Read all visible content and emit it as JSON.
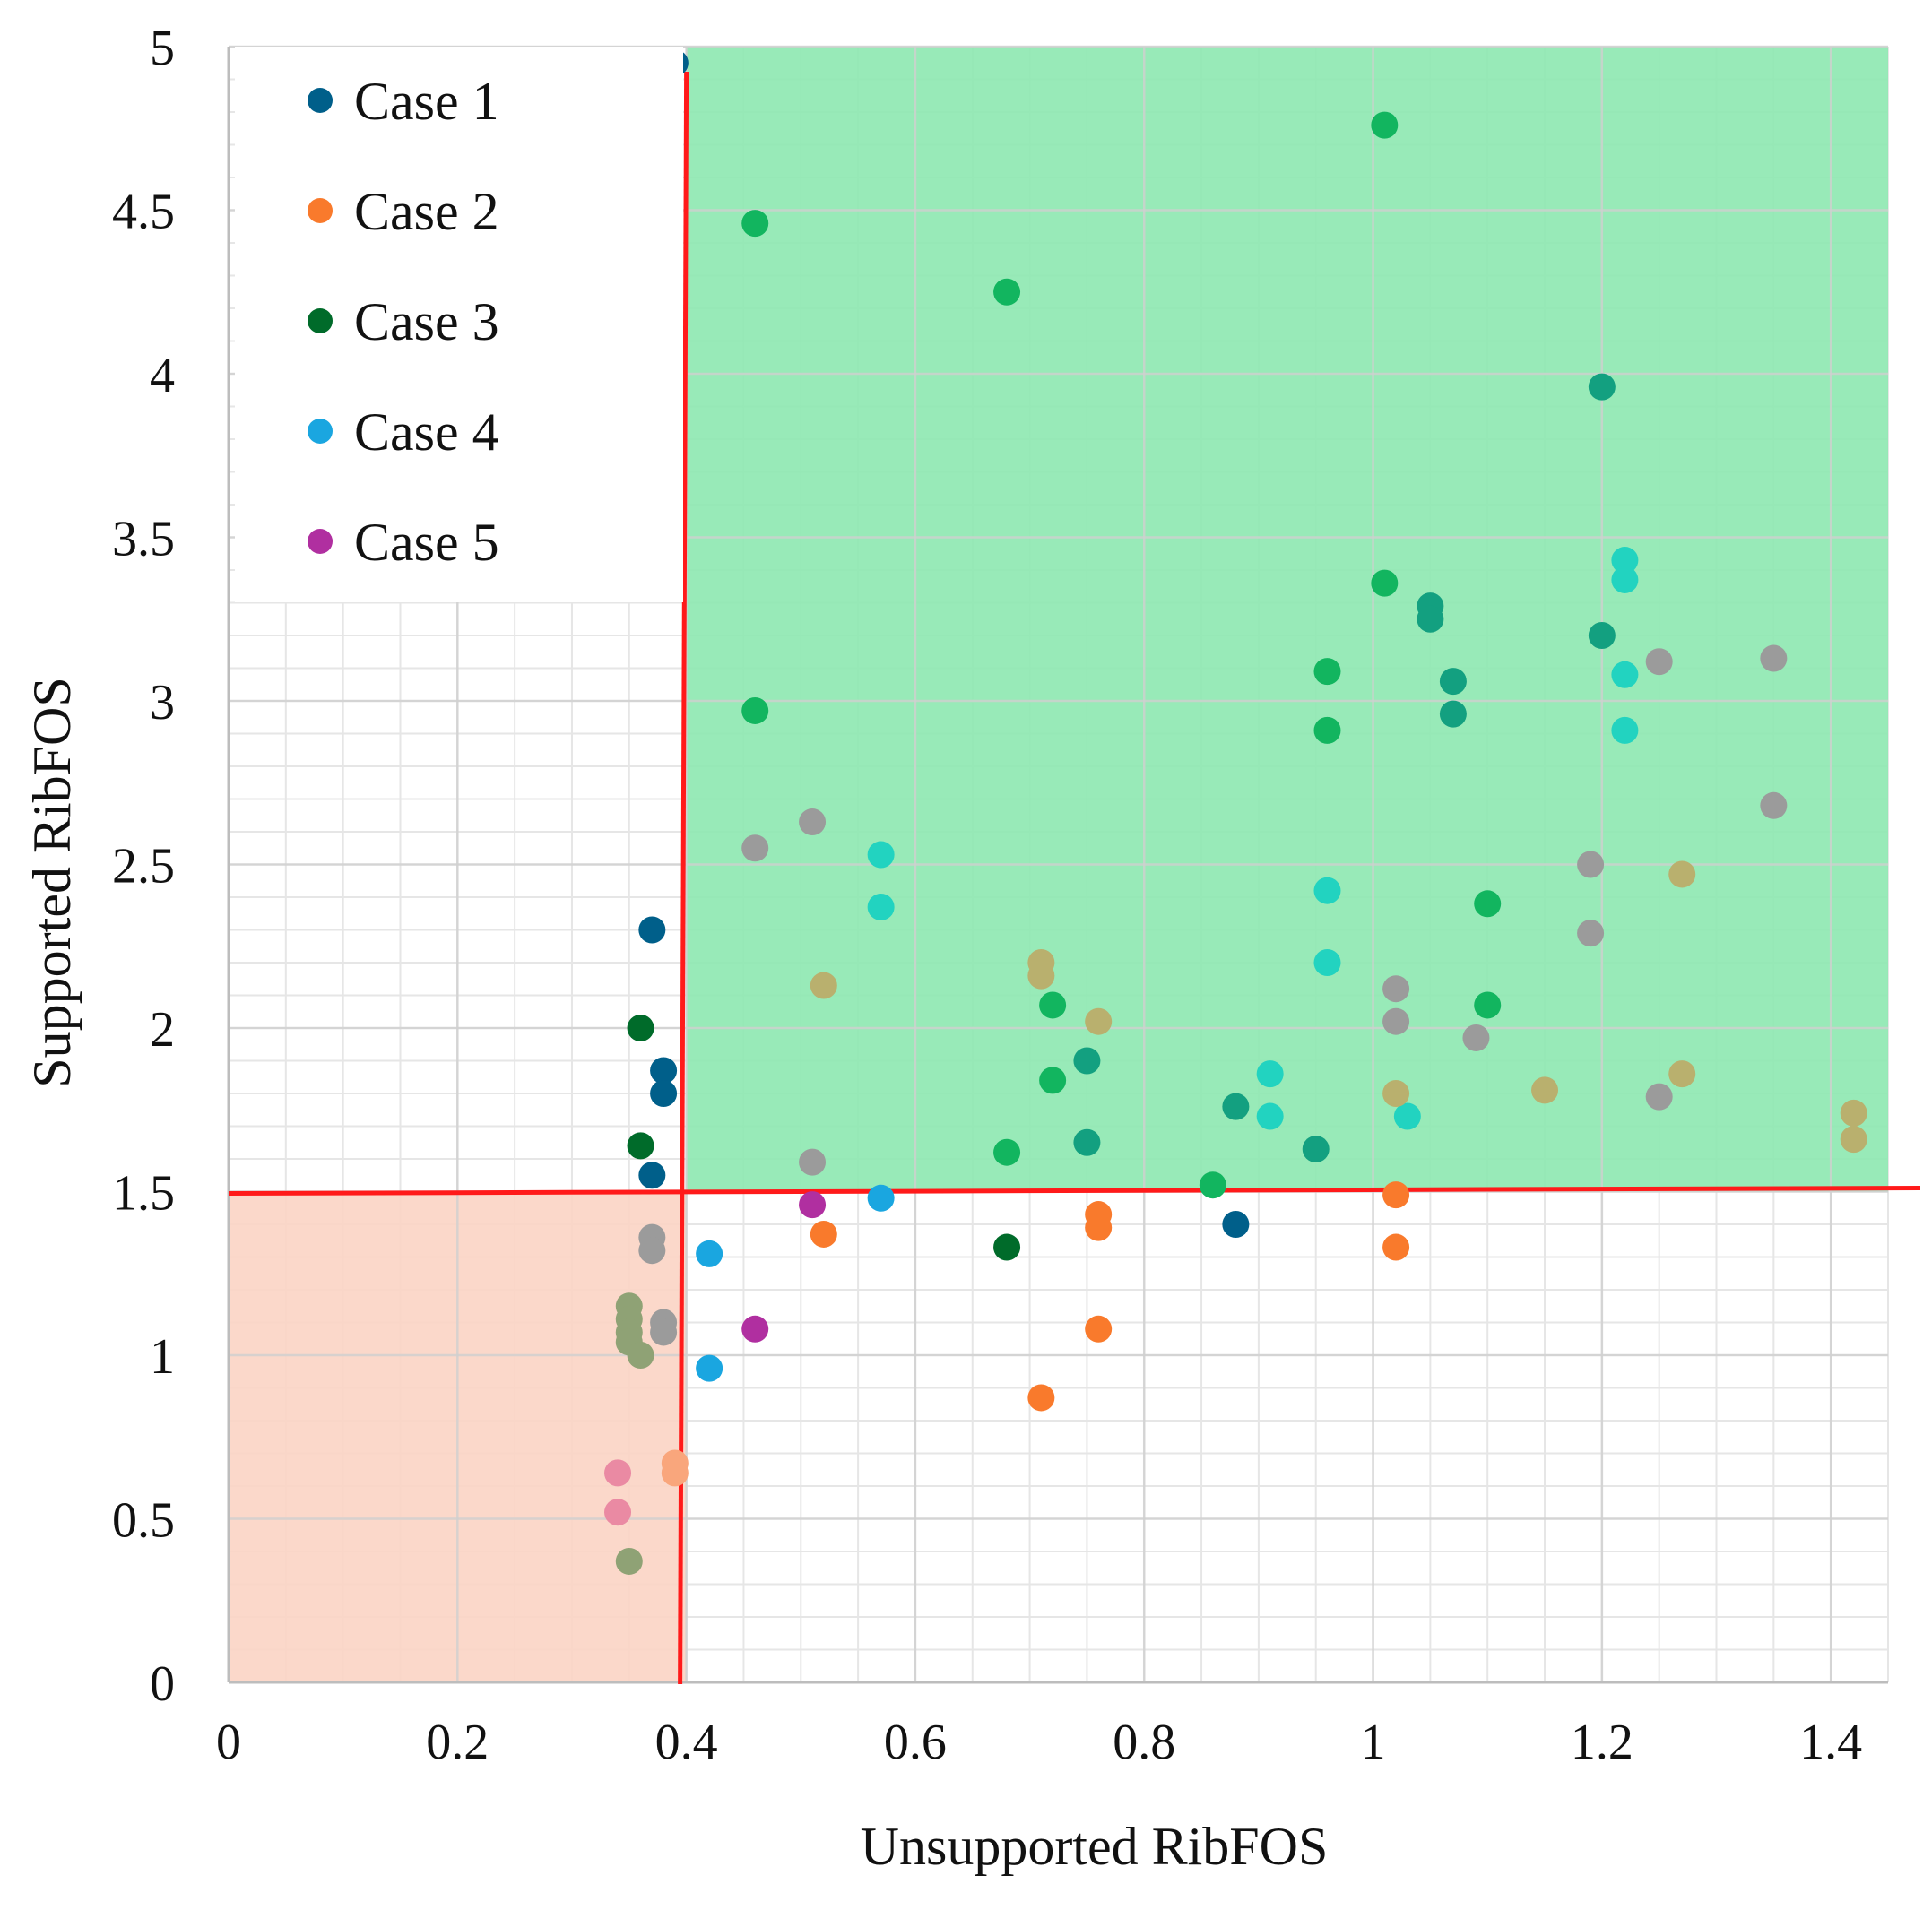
{
  "chart_data": {
    "type": "scatter",
    "title": "",
    "xlabel": "Unsupported RibFOS",
    "ylabel": "Supported RibFOS",
    "xlim": [
      0,
      1.45
    ],
    "ylim": [
      0,
      5
    ],
    "xticks": [
      0,
      0.2,
      0.4,
      0.6,
      0.8,
      1,
      1.2,
      1.4
    ],
    "xtick_labels": [
      "0",
      "0.2",
      "0.4",
      "0.6",
      "0.8",
      "1",
      "1.2",
      "1.4"
    ],
    "yticks": [
      0,
      0.5,
      1,
      1.5,
      2,
      2.5,
      3,
      3.5,
      4,
      4.5,
      5
    ],
    "ytick_labels": [
      "0",
      "0.5",
      "1",
      "1.5",
      "2",
      "2.5",
      "3",
      "3.5",
      "4",
      "4.5",
      "5"
    ],
    "grid": true,
    "legend_position": "top-left",
    "thresholds": {
      "x": 0.4,
      "y": 1.5,
      "color": "#ff1a1a"
    },
    "regions": [
      {
        "name": "safe",
        "x": [
          0.4,
          1.45
        ],
        "y": [
          1.5,
          5
        ],
        "color": "#8fe8b2"
      },
      {
        "name": "unsafe",
        "x": [
          0,
          0.4
        ],
        "y": [
          0,
          1.5
        ],
        "color": "#fbd5c6"
      }
    ],
    "legend": [
      {
        "label": "Case 1",
        "color": "#005f8a"
      },
      {
        "label": "Case 2",
        "color": "#f97a2c"
      },
      {
        "label": "Case 3",
        "color": "#006b2a"
      },
      {
        "label": "Case 4",
        "color": "#1aa6e0"
      },
      {
        "label": "Case 5",
        "color": "#b02fa0"
      }
    ],
    "series": [
      {
        "name": "Case 1",
        "color": "#005f8a",
        "points": [
          [
            0.39,
            4.95
          ],
          [
            0.37,
            2.3
          ],
          [
            0.38,
            1.87
          ],
          [
            0.38,
            1.8
          ],
          [
            0.37,
            1.55
          ],
          [
            0.88,
            1.4
          ]
        ]
      },
      {
        "name": "Case 2",
        "color": "#f97a2c",
        "points": [
          [
            0.52,
            1.37
          ],
          [
            0.76,
            1.43
          ],
          [
            0.76,
            1.39
          ],
          [
            0.76,
            1.08
          ],
          [
            0.71,
            0.87
          ],
          [
            1.02,
            1.49
          ],
          [
            1.02,
            1.33
          ]
        ]
      },
      {
        "name": "Case 3",
        "color": "#006b2a",
        "points": [
          [
            0.35,
            4.82
          ],
          [
            0.36,
            2.0
          ],
          [
            0.36,
            1.64
          ],
          [
            0.68,
            1.33
          ]
        ]
      },
      {
        "name": "Case 4",
        "color": "#1aa6e0",
        "points": [
          [
            0.42,
            1.31
          ],
          [
            0.42,
            0.96
          ],
          [
            0.57,
            1.48
          ]
        ]
      },
      {
        "name": "Case 5",
        "color": "#b02fa0",
        "points": [
          [
            0.51,
            1.46
          ],
          [
            0.46,
            1.08
          ]
        ]
      },
      {
        "name": "Case 3 (green)",
        "color": "#12b55f",
        "points": [
          [
            1.01,
            4.76
          ],
          [
            0.46,
            4.46
          ],
          [
            0.68,
            4.25
          ],
          [
            1.01,
            3.36
          ],
          [
            0.96,
            3.09
          ],
          [
            0.96,
            2.91
          ],
          [
            0.46,
            2.97
          ],
          [
            1.1,
            2.38
          ],
          [
            0.72,
            2.07
          ],
          [
            1.1,
            2.07
          ],
          [
            0.72,
            1.84
          ],
          [
            0.68,
            1.62
          ],
          [
            0.86,
            1.52
          ]
        ]
      },
      {
        "name": "Case 1 (teal)",
        "color": "#13a080",
        "points": [
          [
            1.2,
            3.96
          ],
          [
            1.05,
            3.29
          ],
          [
            1.05,
            3.25
          ],
          [
            1.2,
            3.2
          ],
          [
            1.07,
            3.06
          ],
          [
            1.07,
            2.96
          ],
          [
            0.75,
            1.9
          ],
          [
            0.88,
            1.76
          ],
          [
            0.75,
            1.65
          ],
          [
            0.95,
            1.63
          ]
        ]
      },
      {
        "name": "Case 4 (cyan)",
        "color": "#22d3c0",
        "points": [
          [
            1.22,
            3.43
          ],
          [
            1.22,
            3.37
          ],
          [
            1.22,
            3.08
          ],
          [
            1.22,
            2.91
          ],
          [
            0.57,
            2.53
          ],
          [
            0.57,
            2.37
          ],
          [
            0.96,
            2.42
          ],
          [
            0.96,
            2.2
          ],
          [
            0.91,
            1.86
          ],
          [
            0.91,
            1.73
          ],
          [
            1.03,
            1.73
          ]
        ]
      },
      {
        "name": "Case 2 (gray)",
        "color": "#9b9b9b",
        "points": [
          [
            0.51,
            2.63
          ],
          [
            0.46,
            2.55
          ],
          [
            1.19,
            2.5
          ],
          [
            1.19,
            2.29
          ],
          [
            1.02,
            2.12
          ],
          [
            1.02,
            2.02
          ],
          [
            1.09,
            1.97
          ],
          [
            1.25,
            1.79
          ],
          [
            1.25,
            3.12
          ],
          [
            1.35,
            3.13
          ],
          [
            1.35,
            2.68
          ],
          [
            0.51,
            1.59
          ],
          [
            0.37,
            1.36
          ],
          [
            0.37,
            1.32
          ],
          [
            0.38,
            1.1
          ],
          [
            0.38,
            1.07
          ]
        ]
      },
      {
        "name": "Case 5 (olive)",
        "color": "#b9b06e",
        "points": [
          [
            0.71,
            2.2
          ],
          [
            0.71,
            2.16
          ],
          [
            0.52,
            2.13
          ],
          [
            0.76,
            2.02
          ],
          [
            1.02,
            1.8
          ],
          [
            1.15,
            1.81
          ],
          [
            1.27,
            1.86
          ],
          [
            1.27,
            2.47
          ],
          [
            1.42,
            1.74
          ],
          [
            1.42,
            1.66
          ]
        ]
      },
      {
        "name": "Case 3 (sage)",
        "color": "#8fa275",
        "points": [
          [
            0.35,
            1.15
          ],
          [
            0.35,
            1.11
          ],
          [
            0.35,
            1.07
          ],
          [
            0.35,
            1.04
          ],
          [
            0.36,
            1.0
          ],
          [
            0.35,
            0.37
          ]
        ]
      },
      {
        "name": "Case 5 (pink)",
        "color": "#ea8aa3",
        "points": [
          [
            0.34,
            0.64
          ],
          [
            0.34,
            0.52
          ]
        ]
      },
      {
        "name": "Case 2 (peach)",
        "color": "#f9a67c",
        "points": [
          [
            0.39,
            0.67
          ],
          [
            0.39,
            0.64
          ]
        ]
      }
    ]
  }
}
